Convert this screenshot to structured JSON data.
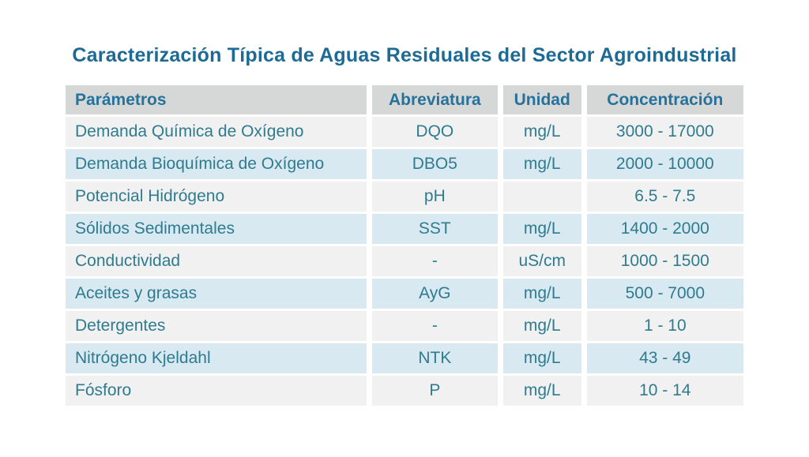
{
  "title": "Caracterización Típica de Aguas Residuales del Sector Agroindustrial",
  "colors": {
    "background": "#ffffff",
    "title_text": "#1d6b94",
    "header_background": "#d6d8d7",
    "header_text": "#27729b",
    "row_odd_background": "#f0f1f0",
    "row_even_background": "#d8e9f1",
    "body_text": "#2f7b90"
  },
  "chart_data": {
    "type": "table",
    "title": "Caracterización Típica de Aguas Residuales del Sector Agroindustrial",
    "columns": [
      "Parámetros",
      "Abreviatura",
      "Unidad",
      "Concentración"
    ],
    "column_keys": [
      "parametro",
      "abreviatura",
      "unidad",
      "concentracion"
    ],
    "rows": [
      [
        "Demanda Química de Oxígeno",
        "DQO",
        "mg/L",
        "3000 - 17000"
      ],
      [
        "Demanda Bioquímica de Oxígeno",
        "DBO5",
        "mg/L",
        "2000 - 10000"
      ],
      [
        "Potencial Hidrógeno",
        "pH",
        "",
        "6.5 - 7.5"
      ],
      [
        "Sólidos Sedimentales",
        "SST",
        "mg/L",
        "1400 - 2000"
      ],
      [
        "Conductividad",
        "-",
        "uS/cm",
        "1000 - 1500"
      ],
      [
        "Aceites y grasas",
        "AyG",
        "mg/L",
        "500 - 7000"
      ],
      [
        "Detergentes",
        "-",
        "mg/L",
        "1 - 10"
      ],
      [
        "Nitrógeno Kjeldahl",
        "NTK",
        "mg/L",
        "43 - 49"
      ],
      [
        "Fósforo",
        "P",
        "mg/L",
        "10 - 14"
      ]
    ]
  }
}
